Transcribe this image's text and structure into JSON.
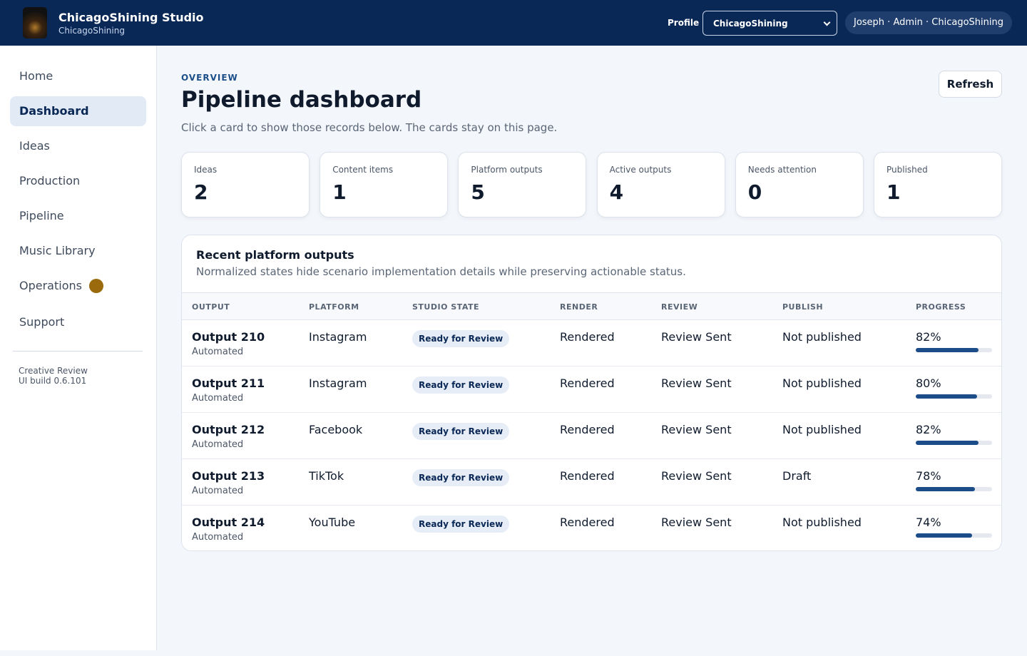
{
  "header": {
    "title": "ChicagoShining Studio",
    "subtitle": "ChicagoShining",
    "profile_label": "Profile",
    "profile_value": "ChicagoShining",
    "user": "Joseph · Admin · ChicagoShining"
  },
  "sidebar": {
    "nav": [
      "Home",
      "Dashboard",
      "Ideas",
      "Production",
      "Pipeline",
      "Music Library",
      "Operations",
      "Support"
    ],
    "footer": [
      "Creative Review",
      "UI build 0.6.101"
    ]
  },
  "page": {
    "eyebrow": "OVERVIEW",
    "title": "Pipeline dashboard",
    "description": "Click a card to show those records below. The cards stay on this page.",
    "refresh": "Refresh"
  },
  "stats": [
    {
      "label": "Ideas",
      "value": 2
    },
    {
      "label": "Content items",
      "value": 1
    },
    {
      "label": "Platform outputs",
      "value": 5
    },
    {
      "label": "Active outputs",
      "value": 4
    },
    {
      "label": "Needs attention",
      "value": 0
    },
    {
      "label": "Published",
      "value": 1
    }
  ],
  "table": {
    "title": "Recent platform outputs",
    "description": "Normalized states hide scenario implementation details while preserving actionable status.",
    "columns": [
      "OUTPUT",
      "PLATFORM",
      "STUDIO STATE",
      "RENDER",
      "REVIEW",
      "PUBLISH",
      "PROGRESS"
    ],
    "rows": [
      {
        "output": "Output 210",
        "source": "Automated",
        "platform": "Instagram",
        "state": "Ready for Review",
        "render": "Rendered",
        "review": "Review Sent",
        "publish": "Not published",
        "progress": 82,
        "progress_label": "82%"
      },
      {
        "output": "Output 211",
        "source": "Automated",
        "platform": "Instagram",
        "state": "Ready for Review",
        "render": "Rendered",
        "review": "Review Sent",
        "publish": "Not published",
        "progress": 80,
        "progress_label": "80%"
      },
      {
        "output": "Output 212",
        "source": "Automated",
        "platform": "Facebook",
        "state": "Ready for Review",
        "render": "Rendered",
        "review": "Review Sent",
        "publish": "Not published",
        "progress": 82,
        "progress_label": "82%"
      },
      {
        "output": "Output 213",
        "source": "Automated",
        "platform": "TikTok",
        "state": "Ready for Review",
        "render": "Rendered",
        "review": "Review Sent",
        "publish": "Draft",
        "progress": 78,
        "progress_label": "78%"
      },
      {
        "output": "Output 214",
        "source": "Automated",
        "platform": "YouTube",
        "state": "Ready for Review",
        "render": "Rendered",
        "review": "Review Sent",
        "publish": "Not published",
        "progress": 74,
        "progress_label": "74%"
      }
    ]
  }
}
